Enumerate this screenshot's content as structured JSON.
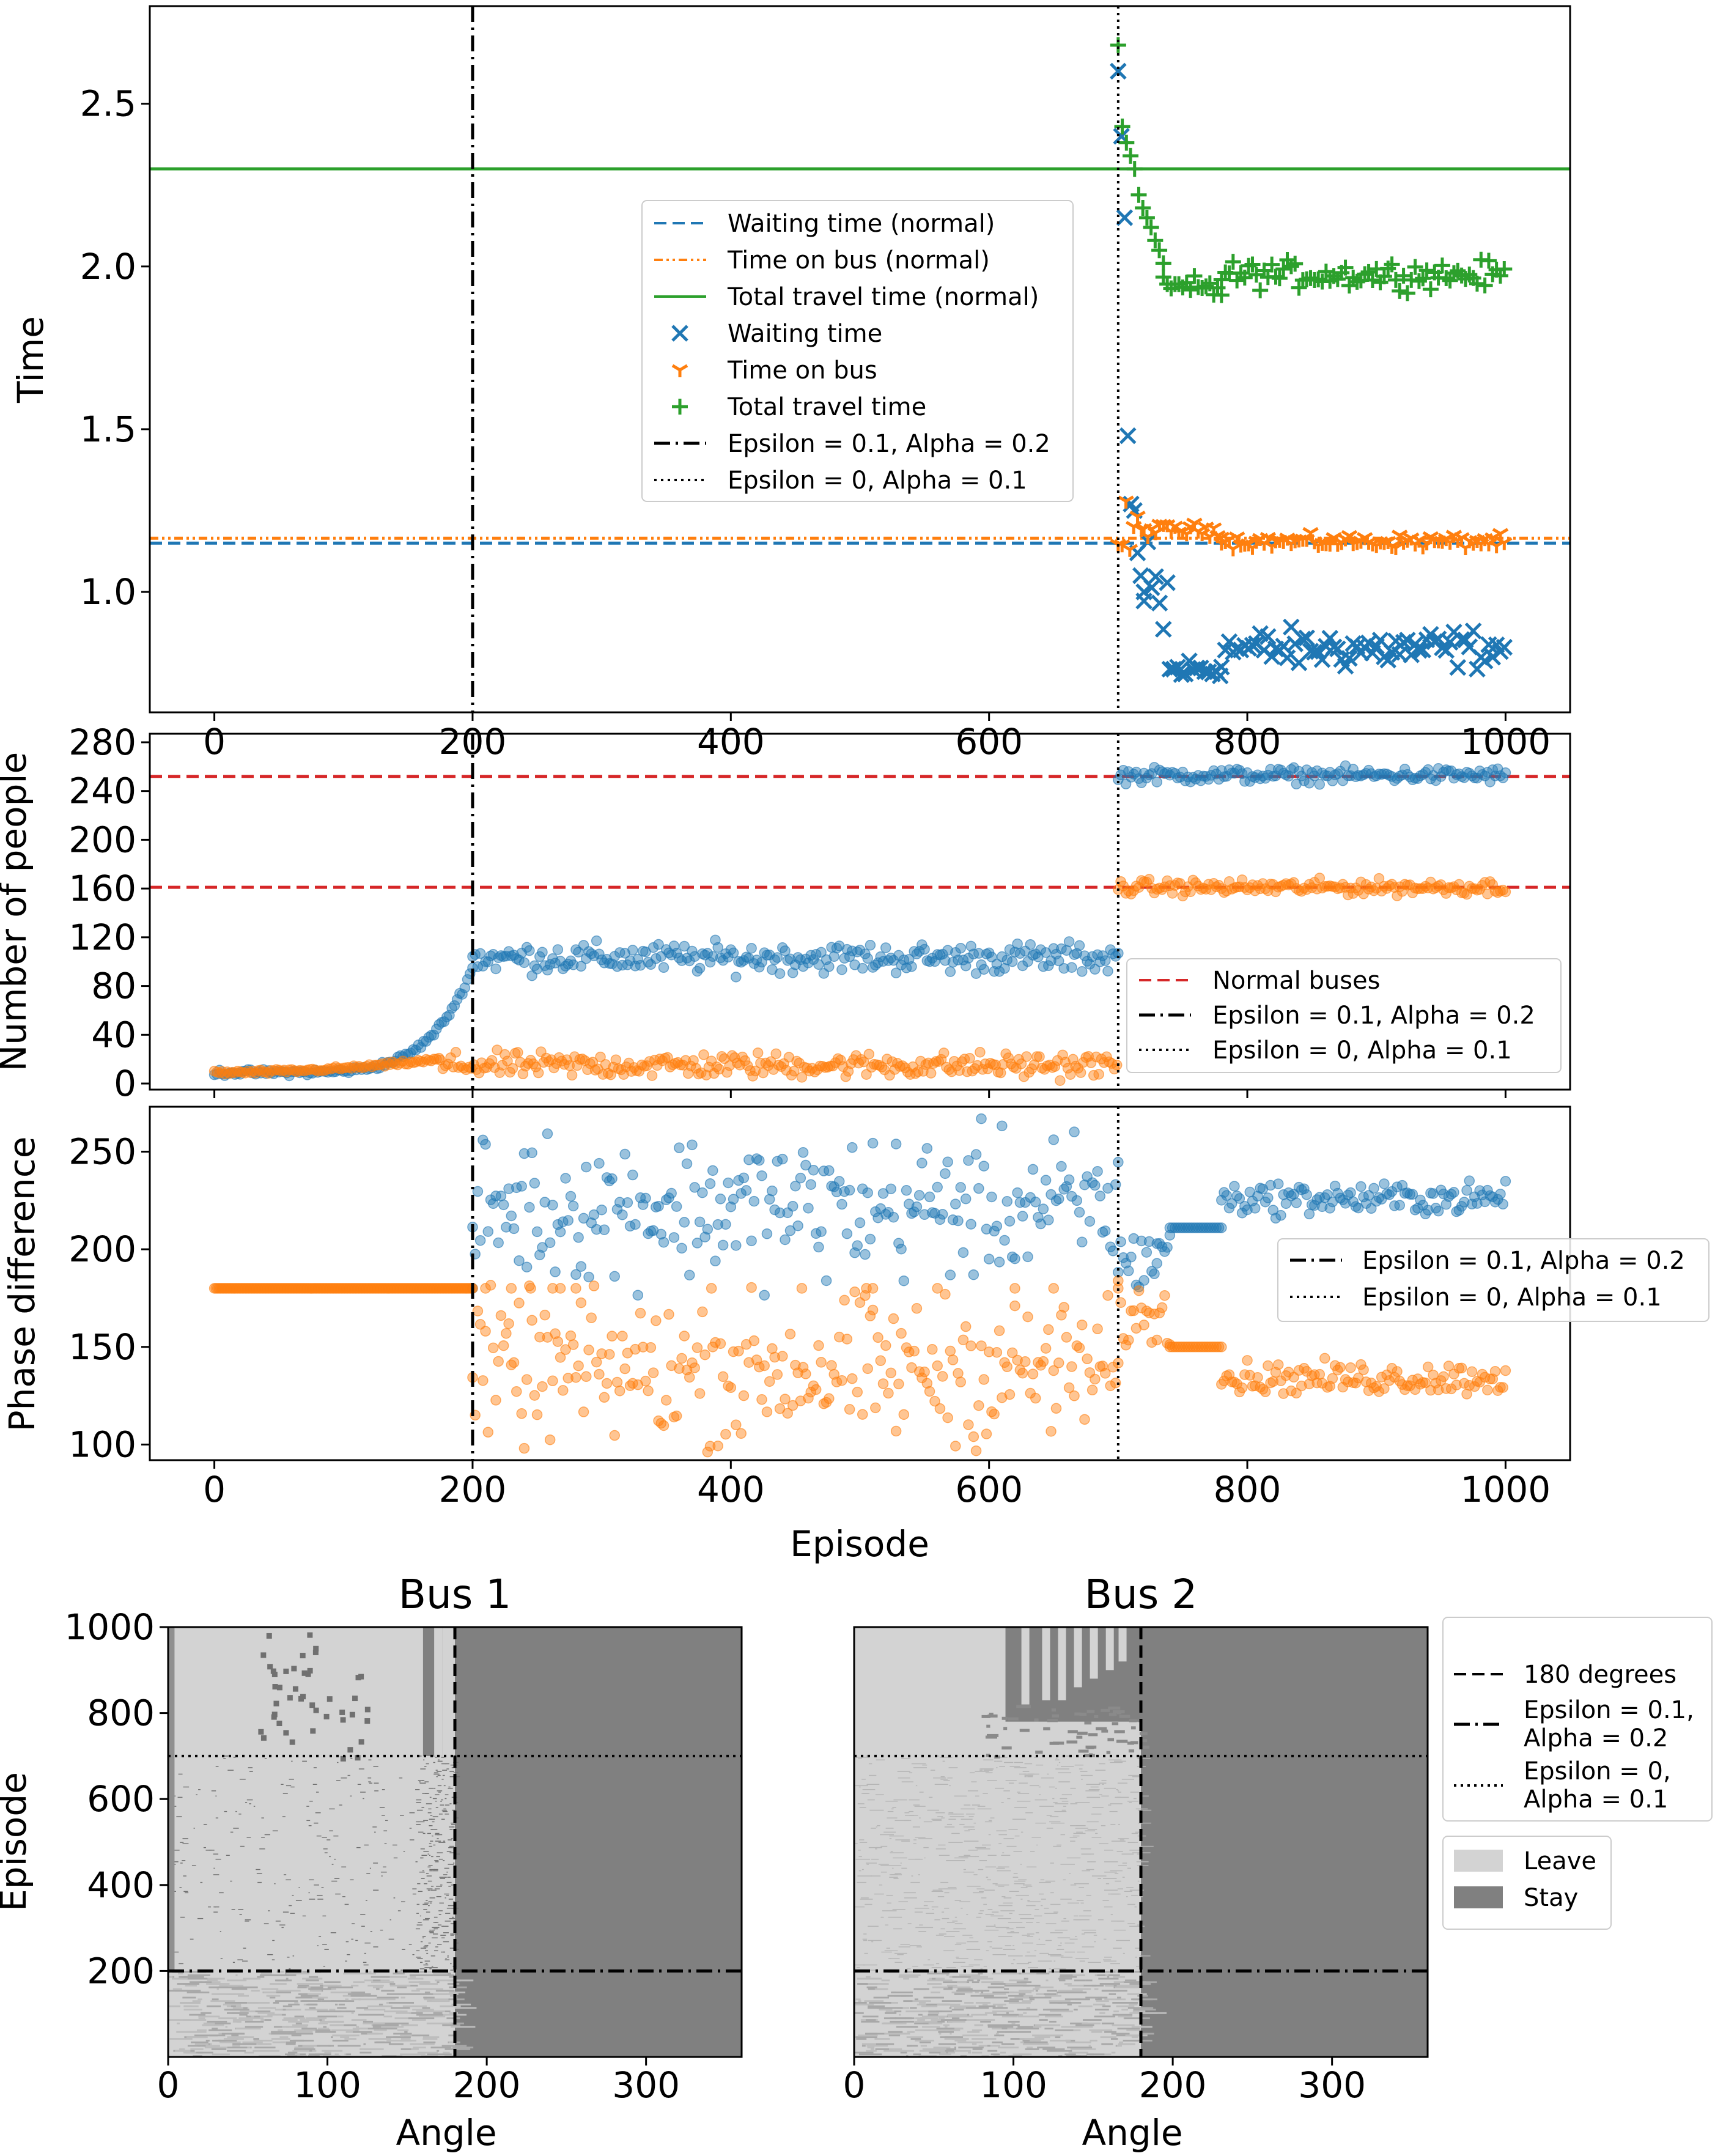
{
  "chart_data": [
    {
      "type": "line",
      "title": "",
      "xlabel": "",
      "ylabel": "Time",
      "xlim": [
        -50,
        1050
      ],
      "ylim": [
        0.63,
        2.8
      ],
      "x_ticks": [
        0,
        200,
        400,
        600,
        800,
        1000
      ],
      "y_ticks": [
        1.0,
        1.5,
        2.0,
        2.5
      ],
      "y_tick_labels": [
        "1.0",
        "1.5",
        "2.0",
        "2.5"
      ],
      "grid": false,
      "legend_position": "center",
      "reference_lines": [
        {
          "name": "Waiting time (normal)",
          "y": 1.15,
          "color": "#1f77b4",
          "style": "dashed"
        },
        {
          "name": "Time on bus (normal)",
          "y": 1.165,
          "color": "#ff7f0e",
          "style": "dashdotdot"
        },
        {
          "name": "Total travel time (normal)",
          "y": 2.3,
          "color": "#2ca02c",
          "style": "solid"
        }
      ],
      "vlines": [
        {
          "name": "Epsilon = 0.1, Alpha = 0.2",
          "x": 200,
          "style": "dashdot"
        },
        {
          "name": "Epsilon = 0, Alpha = 0.1",
          "x": 700,
          "style": "dotted"
        }
      ],
      "series": [
        {
          "name": "Waiting time",
          "marker": "x",
          "color": "#1f77b4",
          "segments": [
            {
              "x_range": [
                700,
                720
              ],
              "values": [
                2.6,
                2.4,
                2.15,
                1.48,
                1.27,
                1.25,
                1.12,
                1.05,
                1.0
              ]
            },
            {
              "x_range": [
                720,
                740
              ],
              "mean": 0.95,
              "spread": 0.12
            },
            {
              "x_range": [
                740,
                780
              ],
              "mean": 0.76,
              "spread": 0.02
            },
            {
              "x_range": [
                780,
                1000
              ],
              "mean": 0.825,
              "spread": 0.03
            }
          ]
        },
        {
          "name": "Time on bus",
          "marker": "tri_down",
          "color": "#ff7f0e",
          "segments": [
            {
              "x_range": [
                700,
                720
              ],
              "mean": 1.17,
              "spread": 0.05
            },
            {
              "x_range": [
                720,
                780
              ],
              "mean": 1.19,
              "spread": 0.01
            },
            {
              "x_range": [
                780,
                1000
              ],
              "mean": 1.155,
              "spread": 0.01
            }
          ]
        },
        {
          "name": "Total travel time",
          "marker": "plus",
          "color": "#2ca02c",
          "segments": [
            {
              "x_range": [
                700,
                735
              ],
              "values": [
                2.68,
                2.43,
                2.38,
                2.34,
                2.3,
                2.22,
                2.18,
                2.15,
                2.12,
                2.08,
                2.05,
                2.01
              ]
            },
            {
              "x_range": [
                735,
                780
              ],
              "mean": 1.93,
              "spread": 0.02
            },
            {
              "x_range": [
                780,
                1000
              ],
              "mean": 1.975,
              "spread": 0.02
            }
          ]
        }
      ]
    },
    {
      "type": "scatter",
      "title": "",
      "xlabel": "",
      "ylabel": "Number of people",
      "xlim": [
        -50,
        1050
      ],
      "ylim": [
        -5,
        287
      ],
      "y_ticks": [
        0,
        40,
        80,
        120,
        160,
        200,
        240,
        280
      ],
      "grid": false,
      "legend_position": "lower right",
      "reference_lines": [
        {
          "name": "Normal buses",
          "y": 252,
          "color": "#d62728",
          "style": "dashed"
        },
        {
          "name": "Normal buses",
          "y": 161,
          "color": "#d62728",
          "style": "dashed"
        }
      ],
      "vlines": [
        {
          "name": "Epsilon = 0.1, Alpha = 0.2",
          "x": 200,
          "style": "dashdot"
        },
        {
          "name": "Epsilon = 0, Alpha = 0.1",
          "x": 700,
          "style": "dotted"
        }
      ],
      "series": [
        {
          "color": "#1f77b4",
          "segments": [
            {
              "x_range": [
                0,
                200
              ],
              "trend": "exponential",
              "start": 9,
              "end": 95
            },
            {
              "x_range": [
                200,
                700
              ],
              "mean": 103,
              "spread": 6
            },
            {
              "x_range": [
                700,
                1000
              ],
              "mean": 253,
              "spread": 3
            }
          ]
        },
        {
          "color": "#ff7f0e",
          "segments": [
            {
              "x_range": [
                0,
                175
              ],
              "trend": "rising",
              "start": 9,
              "end": 20
            },
            {
              "x_range": [
                175,
                700
              ],
              "mean": 15,
              "spread": 5
            },
            {
              "x_range": [
                700,
                1000
              ],
              "mean": 161,
              "spread": 3
            }
          ]
        }
      ]
    },
    {
      "type": "scatter",
      "title": "",
      "xlabel": "Episode",
      "ylabel": "Phase difference",
      "xlim": [
        -50,
        1050
      ],
      "ylim": [
        92,
        273
      ],
      "x_ticks": [
        0,
        200,
        400,
        600,
        800,
        1000
      ],
      "y_ticks": [
        100,
        150,
        200,
        250
      ],
      "grid": false,
      "legend_position": "center right",
      "vlines": [
        {
          "name": "Epsilon = 0.1, Alpha = 0.2",
          "x": 200,
          "style": "dashdot"
        },
        {
          "name": "Epsilon = 0, Alpha = 0.1",
          "x": 700,
          "style": "dotted"
        }
      ],
      "series": [
        {
          "color": "#1f77b4",
          "segments": [
            {
              "x_range": [
                0,
                200
              ],
              "mean": 180,
              "spread": 0
            },
            {
              "x_range": [
                200,
                700
              ],
              "mean": 222,
              "spread": 18
            },
            {
              "x_range": [
                700,
                730
              ],
              "mean": 195,
              "spread": 8
            },
            {
              "x_range": [
                730,
                740
              ],
              "mean": 202,
              "spread": 3
            },
            {
              "x_range": [
                740,
                780
              ],
              "mean": 211,
              "spread": 0
            },
            {
              "x_range": [
                780,
                1000
              ],
              "mean": 226,
              "spread": 4
            }
          ]
        },
        {
          "color": "#ff7f0e",
          "segments": [
            {
              "x_range": [
                0,
                200
              ],
              "mean": 180,
              "spread": 0
            },
            {
              "x_range": [
                200,
                700
              ],
              "mean": 138,
              "spread": 18
            },
            {
              "x_range": [
                700,
                740
              ],
              "mean": 165,
              "spread": 8
            },
            {
              "x_range": [
                740,
                780
              ],
              "mean": 150,
              "spread": 0
            },
            {
              "x_range": [
                780,
                1000
              ],
              "mean": 134,
              "spread": 4
            }
          ]
        }
      ]
    },
    {
      "type": "heatmap",
      "title": "Bus 1",
      "xlabel": "Angle",
      "ylabel": "Episode",
      "xlim": [
        0,
        360
      ],
      "ylim": [
        0,
        1000
      ],
      "x_ticks": [
        0,
        100,
        200,
        300
      ],
      "y_ticks": [
        200,
        400,
        600,
        800,
        1000
      ],
      "categories": [
        "Leave",
        "Stay"
      ],
      "colors": {
        "Leave": "#d3d3d3",
        "Stay": "#808080"
      },
      "description_values": {
        "stay_above_angle": 180
      },
      "vlines": [
        {
          "name": "180 degrees",
          "x": 180,
          "style": "dashed"
        }
      ],
      "hlines": [
        {
          "name": "Epsilon = 0.1, Alpha = 0.2",
          "y": 200,
          "style": "dashdot"
        },
        {
          "name": "Epsilon = 0, Alpha = 0.1",
          "y": 700,
          "style": "dotted"
        }
      ]
    },
    {
      "type": "heatmap",
      "title": "Bus 2",
      "xlabel": "Angle",
      "ylabel": "",
      "xlim": [
        0,
        360
      ],
      "ylim": [
        0,
        1000
      ],
      "x_ticks": [
        0,
        100,
        200,
        300
      ],
      "y_ticks": [],
      "categories": [
        "Leave",
        "Stay"
      ],
      "colors": {
        "Leave": "#d3d3d3",
        "Stay": "#808080"
      },
      "description_values": {
        "stay_above_angle": 180
      },
      "vlines": [
        {
          "name": "180 degrees",
          "x": 180,
          "style": "dashed"
        }
      ],
      "hlines": [
        {
          "name": "Epsilon = 0.1, Alpha = 0.2",
          "y": 200,
          "style": "dashdot"
        },
        {
          "name": "Epsilon = 0, Alpha = 0.1",
          "y": 700,
          "style": "dotted"
        }
      ]
    }
  ],
  "legends": {
    "time": [
      "Waiting time (normal)",
      "Time on bus (normal)",
      "Total travel time (normal)",
      "Waiting time",
      "Time on bus",
      "Total travel time",
      "Epsilon = 0.1, Alpha = 0.2",
      "Epsilon = 0, Alpha = 0.1"
    ],
    "people": [
      "Normal buses",
      "Epsilon = 0.1, Alpha = 0.2",
      "Epsilon = 0, Alpha = 0.1"
    ],
    "phase": [
      "Epsilon = 0.1, Alpha = 0.2",
      "Epsilon = 0, Alpha = 0.1"
    ],
    "heatmap_lines": [
      "180 degrees",
      "Epsilon = 0.1,",
      "Alpha = 0.2",
      "Epsilon = 0,",
      "Alpha = 0.1"
    ],
    "heatmap_cells": [
      "Leave",
      "Stay"
    ]
  },
  "colors": {
    "blue": "#1f77b4",
    "orange": "#ff7f0e",
    "green": "#2ca02c",
    "red": "#d62728",
    "leave": "#d3d3d3",
    "stay": "#808080"
  }
}
